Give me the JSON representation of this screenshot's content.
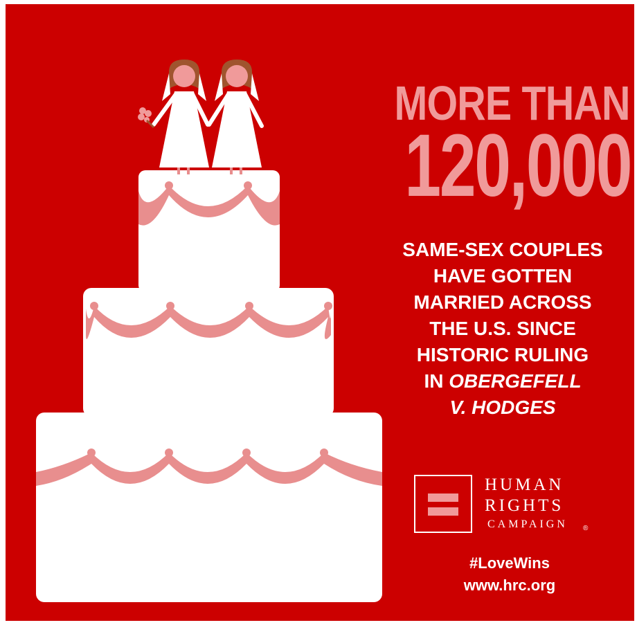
{
  "colors": {
    "background": "#cc0000",
    "accent_pink": "#f09a9a",
    "white": "#ffffff"
  },
  "headline": {
    "line1": "MORE THAN",
    "line2": "120,000"
  },
  "body_lines": [
    "SAME-SEX COUPLES",
    "HAVE GOTTEN",
    "MARRIED ACROSS",
    "THE U.S. SINCE",
    "HISTORIC RULING"
  ],
  "body_line6_prefix": "IN ",
  "body_line6_italic": "OBERGEFELL",
  "body_line7_italic": "V. HODGES",
  "logo": {
    "line1": "HUMAN",
    "line2": "RIGHTS",
    "line3": "CAMPAIGN",
    "registered": "®"
  },
  "footer": {
    "hashtag": "#LoveWins",
    "url": "www.hrc.org"
  },
  "illustration": {
    "icons": [
      "wedding-cake-icon",
      "bride-figure-icon",
      "bouquet-icon"
    ]
  }
}
